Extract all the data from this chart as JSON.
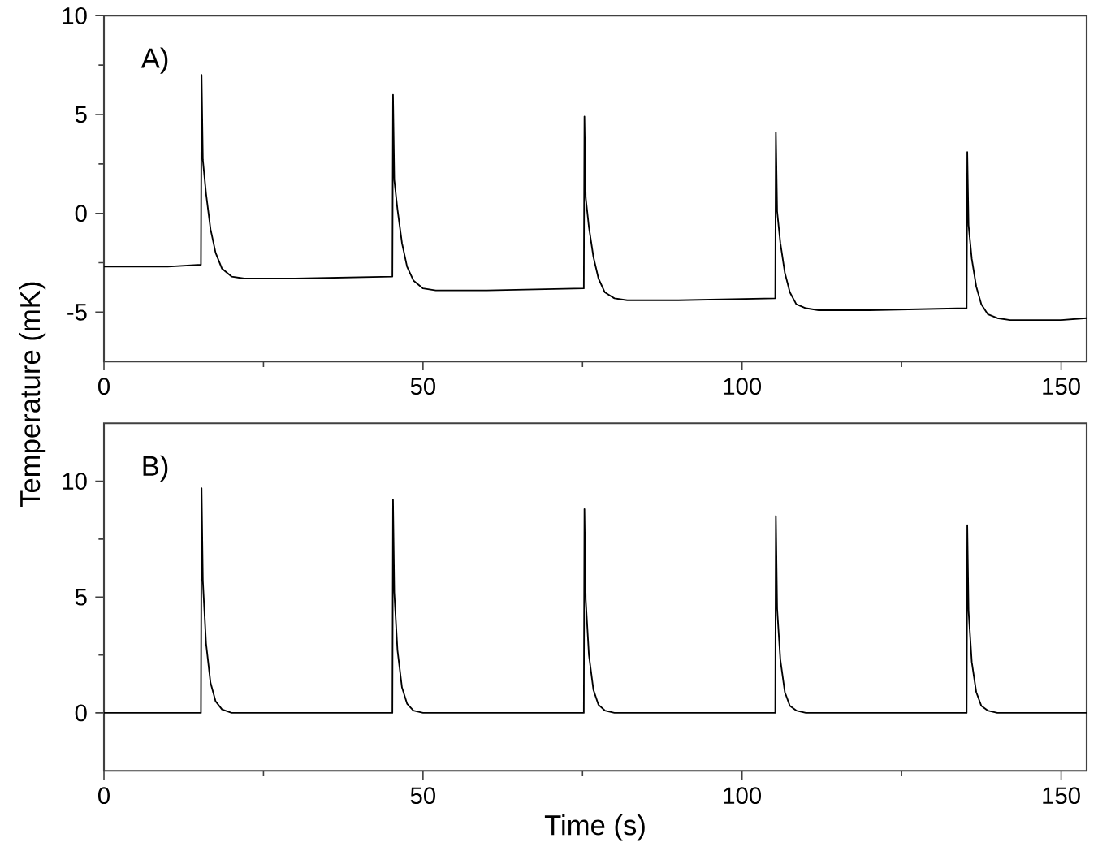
{
  "chart_data": [
    {
      "type": "line",
      "ylabel": "Temperature (mK)",
      "annotations": [
        "A)"
      ],
      "color": "#000000",
      "marker": "none",
      "line_style": "solid",
      "x": [
        0,
        5,
        10,
        15.2,
        15.3,
        15.5,
        16,
        16.7,
        17.5,
        18.5,
        20,
        22,
        30,
        45.2,
        45.3,
        45.5,
        46,
        46.7,
        47.5,
        48.5,
        50,
        52,
        60,
        75.2,
        75.3,
        75.5,
        76,
        76.7,
        77.5,
        78.5,
        80,
        82,
        90,
        105.2,
        105.3,
        105.5,
        106,
        106.7,
        107.5,
        108.5,
        110,
        112,
        120,
        135.2,
        135.3,
        135.5,
        136,
        136.7,
        137.5,
        138.5,
        140,
        142,
        150,
        154
      ],
      "values": [
        -2.7,
        -2.7,
        -2.7,
        -2.6,
        7.0,
        2.7,
        1.0,
        -0.8,
        -2.0,
        -2.8,
        -3.2,
        -3.3,
        -3.3,
        -3.2,
        6.0,
        1.7,
        0.2,
        -1.5,
        -2.7,
        -3.4,
        -3.8,
        -3.9,
        -3.9,
        -3.8,
        4.9,
        0.8,
        -0.7,
        -2.2,
        -3.3,
        -4.0,
        -4.3,
        -4.4,
        -4.4,
        -4.3,
        4.1,
        0.1,
        -1.5,
        -3.0,
        -4.0,
        -4.6,
        -4.8,
        -4.9,
        -4.9,
        -4.8,
        3.1,
        -0.6,
        -2.3,
        -3.7,
        -4.6,
        -5.1,
        -5.3,
        -5.4,
        -5.4,
        -5.3
      ],
      "xlim": [
        0,
        154
      ],
      "ylim": [
        -7.5,
        10
      ],
      "xticks": [
        0,
        {
          "value": 25,
          "label": null
        },
        50,
        {
          "value": 75,
          "label": null
        },
        100,
        {
          "value": 125,
          "label": null
        },
        150
      ],
      "yticks": [
        -5,
        {
          "value": -2.5,
          "label": null
        },
        0,
        {
          "value": 2.5,
          "label": null
        },
        5,
        {
          "value": 7.5,
          "label": null
        },
        10
      ]
    },
    {
      "type": "line",
      "xlabel": "Time (s)",
      "annotations": [
        "B)"
      ],
      "color": "#000000",
      "marker": "none",
      "line_style": "solid",
      "x": [
        0,
        5,
        10,
        15.2,
        15.3,
        15.5,
        16,
        16.7,
        17.5,
        18.5,
        20,
        22,
        30,
        45.2,
        45.3,
        45.5,
        46,
        46.7,
        47.5,
        48.5,
        50,
        52,
        60,
        75.2,
        75.3,
        75.5,
        76,
        76.7,
        77.5,
        78.5,
        80,
        82,
        90,
        105.2,
        105.3,
        105.5,
        106,
        106.7,
        107.5,
        108.5,
        110,
        112,
        120,
        135.2,
        135.3,
        135.5,
        136,
        136.7,
        137.5,
        138.5,
        140,
        142,
        150,
        154
      ],
      "values": [
        0,
        0,
        0,
        0,
        9.7,
        5.7,
        3.0,
        1.3,
        0.5,
        0.15,
        0,
        0,
        0,
        0,
        9.2,
        5.2,
        2.7,
        1.1,
        0.4,
        0.1,
        0,
        0,
        0,
        0,
        8.8,
        4.9,
        2.5,
        1.0,
        0.35,
        0.1,
        0,
        0,
        0,
        0,
        8.5,
        4.5,
        2.3,
        0.9,
        0.3,
        0.1,
        0,
        0,
        0,
        0,
        8.1,
        4.4,
        2.2,
        0.9,
        0.3,
        0.1,
        0,
        0,
        0,
        0
      ],
      "xlim": [
        0,
        154
      ],
      "ylim": [
        -2.5,
        12.5
      ],
      "xticks": [
        0,
        {
          "value": 25,
          "label": null
        },
        50,
        {
          "value": 75,
          "label": null
        },
        100,
        {
          "value": 125,
          "label": null
        },
        150
      ],
      "yticks": [
        0,
        {
          "value": 2.5,
          "label": null
        },
        5,
        {
          "value": 7.5,
          "label": null
        },
        10
      ]
    }
  ]
}
